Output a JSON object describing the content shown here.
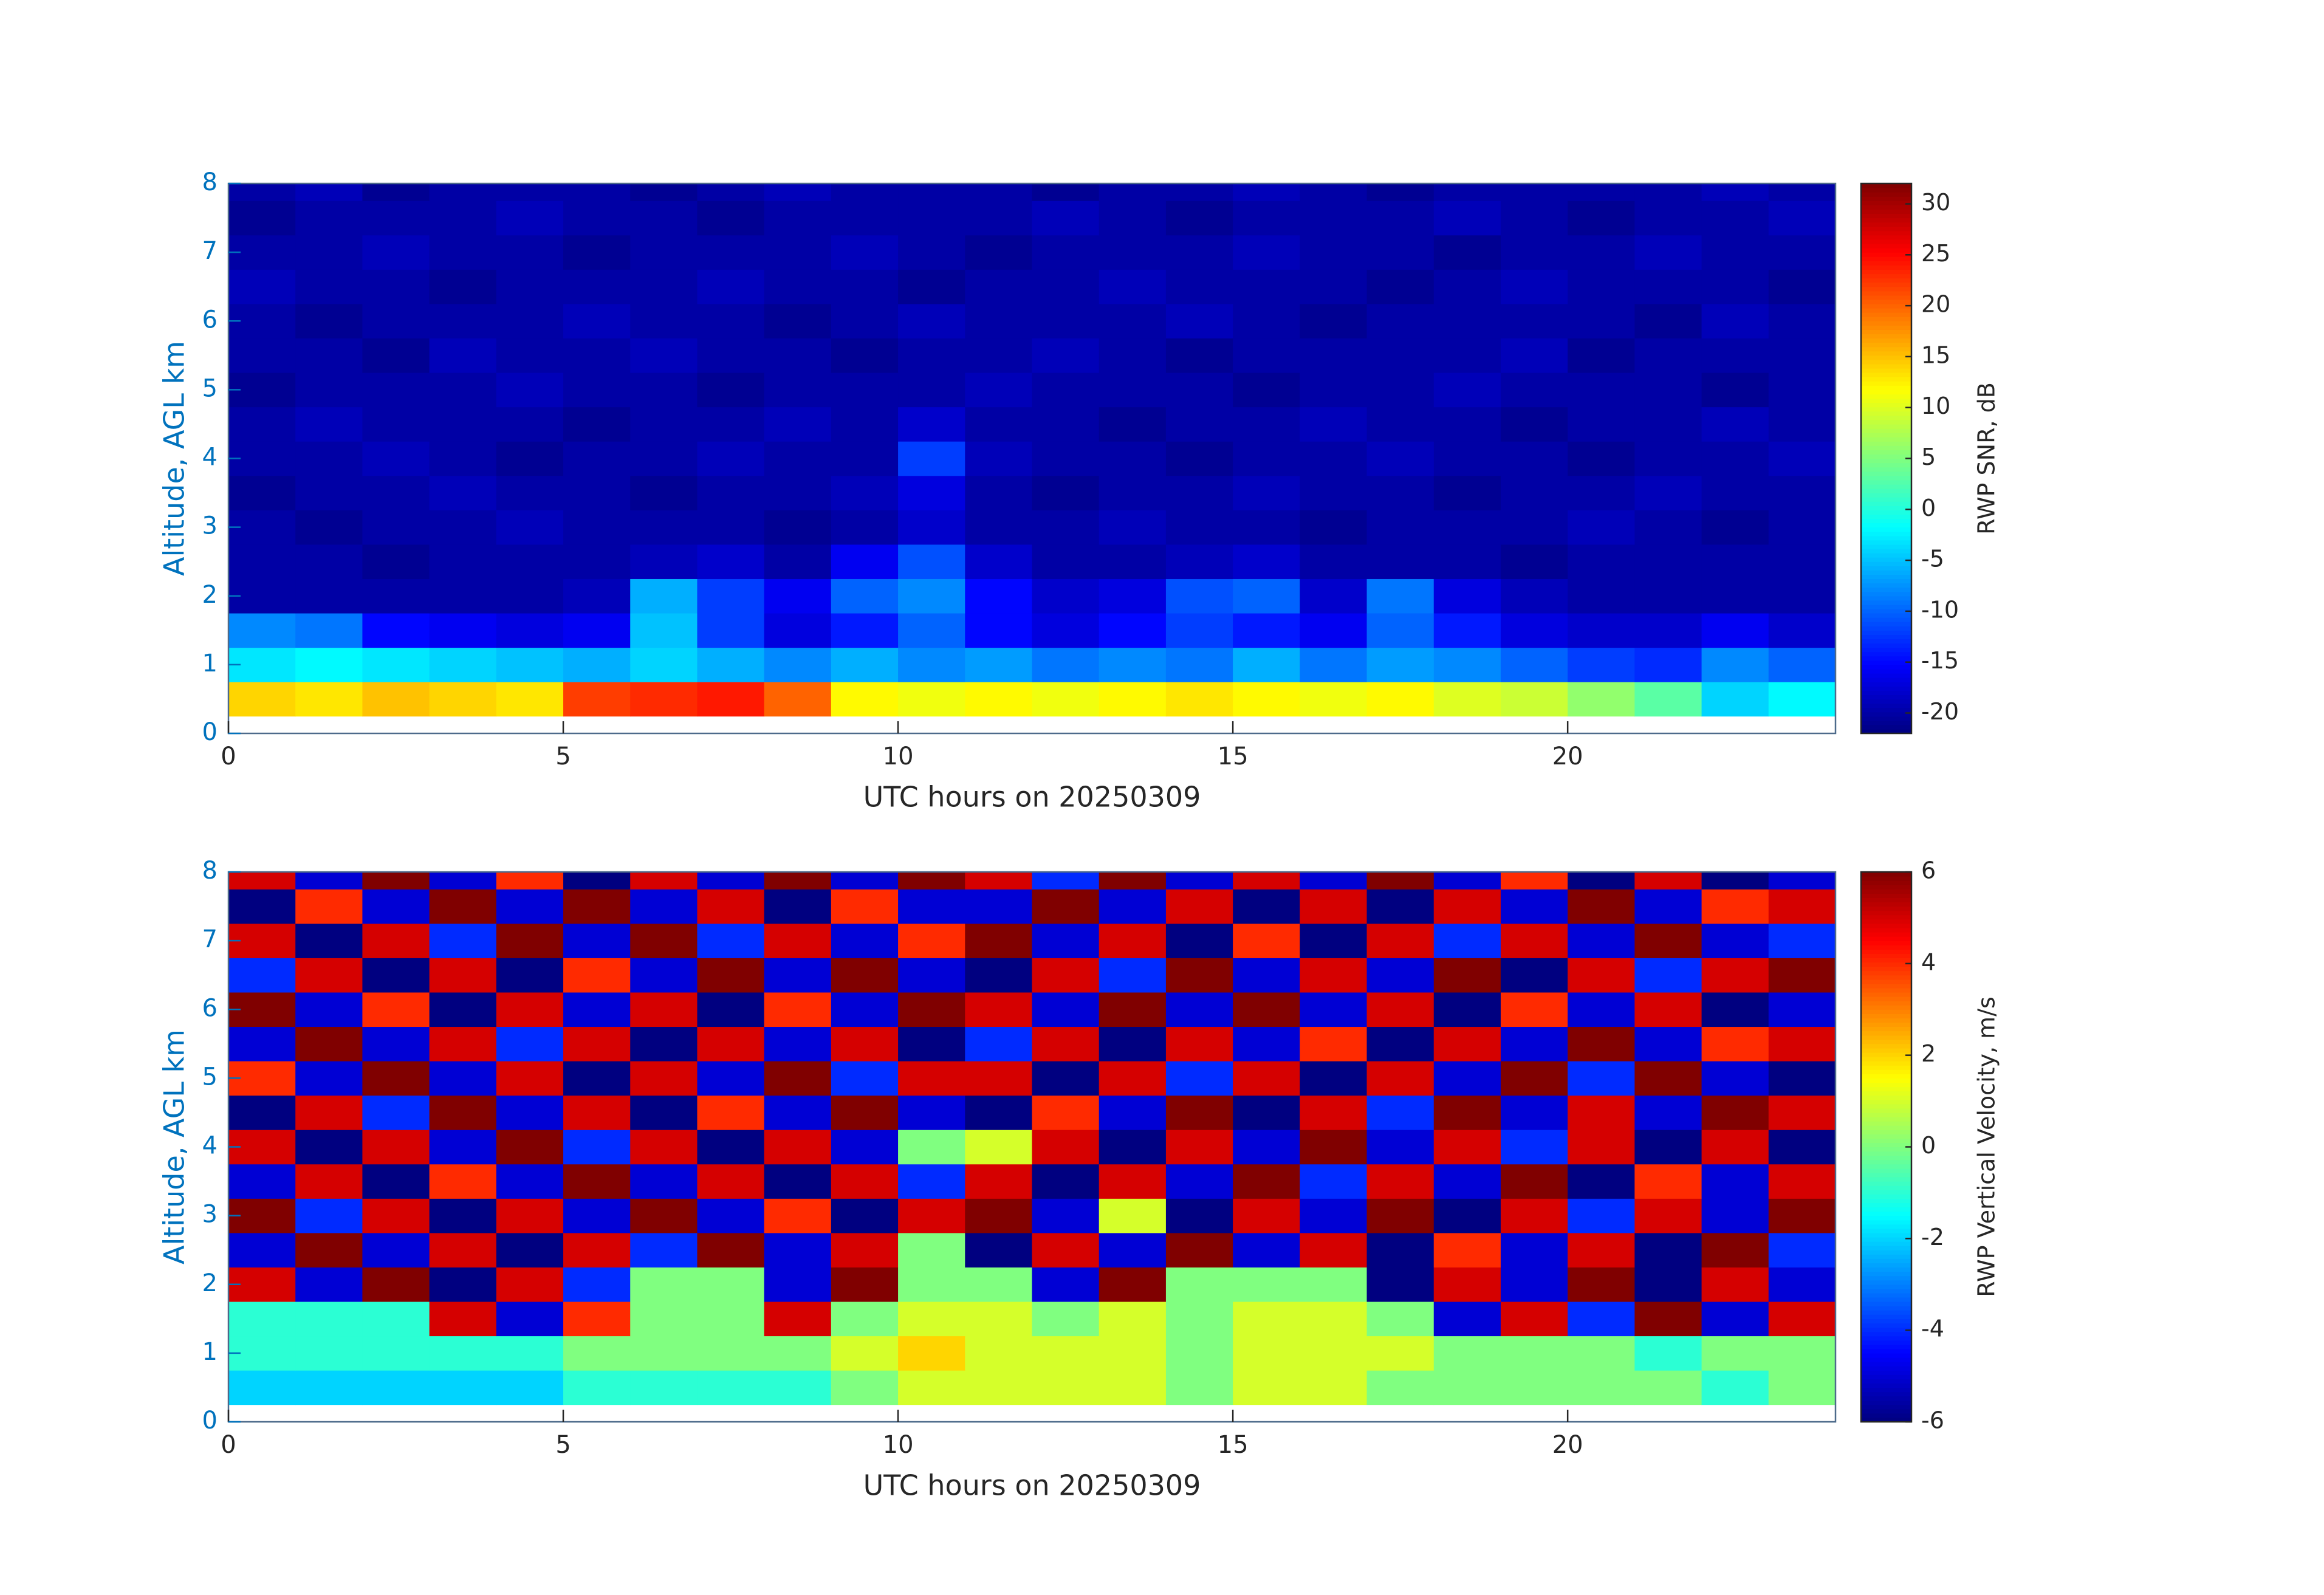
{
  "chart_data": [
    {
      "type": "heatmap",
      "xlabel": "UTC hours on 20250309",
      "ylabel": "Altitude, AGL km",
      "colorbar_label": "RWP SNR, dB",
      "xlim": [
        0,
        24
      ],
      "xticks": [
        0,
        5,
        10,
        15,
        20
      ],
      "ylim": [
        0,
        8
      ],
      "yticks": [
        0,
        1,
        2,
        3,
        4,
        5,
        6,
        7,
        8
      ],
      "clim": [
        -22,
        32
      ],
      "cticks": [
        -20,
        -15,
        -10,
        -5,
        0,
        5,
        10,
        15,
        20,
        25,
        30
      ],
      "colormap": "jet",
      "x": [
        0.5,
        1.5,
        2.5,
        3.5,
        4.5,
        5.5,
        6.5,
        7.5,
        8.5,
        9.5,
        10.5,
        11.5,
        12.5,
        13.5,
        14.5,
        15.5,
        16.5,
        17.5,
        18.5,
        19.5,
        20.5,
        21.5,
        22.5,
        23.5
      ],
      "y": [
        0.5,
        1.0,
        1.5,
        2.0,
        2.5,
        3.0,
        3.5,
        4.0,
        4.5,
        5.0,
        5.5,
        6.0,
        6.5,
        7.0,
        7.5,
        8.0
      ],
      "z": [
        [
          14,
          13,
          15,
          14,
          13,
          22,
          23,
          24,
          20,
          12,
          11,
          12,
          11,
          12,
          13,
          12,
          11,
          12,
          10,
          9,
          6,
          3,
          -4,
          -2
        ],
        [
          -3,
          -2,
          -3,
          -4,
          -5,
          -6,
          -4,
          -6,
          -8,
          -6,
          -8,
          -7,
          -9,
          -8,
          -9,
          -6,
          -9,
          -7,
          -8,
          -10,
          -12,
          -13,
          -8,
          -10
        ],
        [
          -8,
          -9,
          -15,
          -16,
          -17,
          -16,
          -5,
          -12,
          -17,
          -14,
          -10,
          -15,
          -17,
          -15,
          -12,
          -14,
          -16,
          -10,
          -14,
          -17,
          -18,
          -18,
          -16,
          -18
        ],
        [
          -20,
          -20,
          -20,
          -20,
          -20,
          -19,
          -6,
          -12,
          -16,
          -10,
          -8,
          -15,
          -18,
          -17,
          -11,
          -10,
          -18,
          -9,
          -17,
          -19,
          -20,
          -20,
          -20,
          -20
        ],
        [
          -20,
          -20,
          -21,
          -20,
          -20,
          -20,
          -19,
          -18,
          -20,
          -16,
          -11,
          -18,
          -20,
          -20,
          -19,
          -18,
          -20,
          -20,
          -20,
          -21,
          -20,
          -20,
          -20,
          -20
        ],
        [
          -20,
          -21,
          -20,
          -20,
          -19,
          -20,
          -20,
          -20,
          -21,
          -20,
          -18,
          -20,
          -20,
          -19,
          -20,
          -20,
          -21,
          -20,
          -20,
          -20,
          -19,
          -20,
          -21,
          -20
        ],
        [
          -21,
          -20,
          -20,
          -19,
          -20,
          -20,
          -21,
          -20,
          -20,
          -19,
          -17,
          -20,
          -21,
          -20,
          -20,
          -19,
          -20,
          -20,
          -21,
          -20,
          -20,
          -19,
          -20,
          -20
        ],
        [
          -20,
          -20,
          -19,
          -20,
          -21,
          -20,
          -20,
          -19,
          -20,
          -20,
          -12,
          -19,
          -20,
          -20,
          -21,
          -20,
          -20,
          -19,
          -20,
          -20,
          -21,
          -20,
          -20,
          -19
        ],
        [
          -20,
          -19,
          -20,
          -20,
          -20,
          -21,
          -20,
          -20,
          -19,
          -20,
          -18,
          -20,
          -20,
          -21,
          -20,
          -20,
          -19,
          -20,
          -20,
          -21,
          -20,
          -20,
          -19,
          -20
        ],
        [
          -21,
          -20,
          -20,
          -20,
          -19,
          -20,
          -20,
          -21,
          -20,
          -20,
          -20,
          -19,
          -20,
          -20,
          -20,
          -21,
          -20,
          -20,
          -19,
          -20,
          -20,
          -20,
          -21,
          -20
        ],
        [
          -20,
          -20,
          -21,
          -19,
          -20,
          -20,
          -19,
          -20,
          -20,
          -21,
          -20,
          -20,
          -19,
          -20,
          -21,
          -20,
          -20,
          -20,
          -20,
          -19,
          -21,
          -20,
          -20,
          -20
        ],
        [
          -20,
          -21,
          -20,
          -20,
          -20,
          -19,
          -20,
          -20,
          -21,
          -20,
          -19,
          -20,
          -20,
          -20,
          -19,
          -20,
          -21,
          -20,
          -20,
          -20,
          -20,
          -21,
          -19,
          -20
        ],
        [
          -19,
          -20,
          -20,
          -21,
          -20,
          -20,
          -20,
          -19,
          -20,
          -20,
          -21,
          -20,
          -20,
          -19,
          -20,
          -20,
          -20,
          -21,
          -20,
          -19,
          -20,
          -20,
          -20,
          -21
        ],
        [
          -20,
          -20,
          -19,
          -20,
          -20,
          -21,
          -20,
          -20,
          -20,
          -19,
          -20,
          -21,
          -20,
          -20,
          -20,
          -19,
          -20,
          -20,
          -21,
          -20,
          -20,
          -19,
          -20,
          -20
        ],
        [
          -21,
          -20,
          -20,
          -20,
          -19,
          -20,
          -20,
          -21,
          -20,
          -20,
          -20,
          -20,
          -19,
          -20,
          -21,
          -20,
          -20,
          -20,
          -19,
          -20,
          -21,
          -20,
          -20,
          -19
        ],
        [
          -20,
          -19,
          -21,
          -20,
          -20,
          -20,
          -21,
          -20,
          -19,
          -20,
          -20,
          -20,
          -21,
          -20,
          -20,
          -19,
          -20,
          -21,
          -20,
          -20,
          -20,
          -20,
          -19,
          -20
        ]
      ]
    },
    {
      "type": "heatmap",
      "xlabel": "UTC hours on 20250309",
      "ylabel": "Altitude, AGL km",
      "colorbar_label": "RWP Vertical Velocity, m/s",
      "xlim": [
        0,
        24
      ],
      "xticks": [
        0,
        5,
        10,
        15,
        20
      ],
      "ylim": [
        0,
        8
      ],
      "yticks": [
        0,
        1,
        2,
        3,
        4,
        5,
        6,
        7,
        8
      ],
      "clim": [
        -6,
        6
      ],
      "cticks": [
        -6,
        -4,
        -2,
        0,
        2,
        4,
        6
      ],
      "colormap": "jet",
      "x": [
        0.5,
        1.5,
        2.5,
        3.5,
        4.5,
        5.5,
        6.5,
        7.5,
        8.5,
        9.5,
        10.5,
        11.5,
        12.5,
        13.5,
        14.5,
        15.5,
        16.5,
        17.5,
        18.5,
        19.5,
        20.5,
        21.5,
        22.5,
        23.5
      ],
      "y": [
        0.5,
        1.0,
        1.5,
        2.0,
        2.5,
        3.0,
        3.5,
        4.0,
        4.5,
        5.0,
        5.5,
        6.0,
        6.5,
        7.0,
        7.5,
        8.0
      ],
      "z": [
        [
          -2,
          -2,
          -2,
          -2,
          -2,
          -1,
          -1,
          -1,
          -1,
          0,
          1,
          1,
          1,
          1,
          0,
          1,
          1,
          0,
          0,
          0,
          0,
          0,
          -1,
          0
        ],
        [
          -1,
          -1,
          -1,
          -1,
          -1,
          0,
          0,
          0,
          0,
          1,
          2,
          1,
          1,
          1,
          0,
          1,
          1,
          1,
          0,
          0,
          0,
          -1,
          0,
          0
        ],
        [
          -1,
          -1,
          -1,
          5,
          -5,
          4,
          0,
          0,
          5,
          0,
          1,
          1,
          0,
          1,
          0,
          1,
          1,
          0,
          -5,
          5,
          -4,
          6,
          -5,
          5
        ],
        [
          5,
          -5,
          6,
          -6,
          5,
          -4,
          0,
          0,
          -5,
          6,
          0,
          0,
          -5,
          6,
          0,
          0,
          0,
          -6,
          5,
          -5,
          6,
          -6,
          5,
          -5
        ],
        [
          -5,
          6,
          -5,
          5,
          -6,
          5,
          -4,
          6,
          -5,
          5,
          0,
          -6,
          5,
          -5,
          6,
          -5,
          5,
          -6,
          4,
          -5,
          5,
          -6,
          6,
          -4
        ],
        [
          6,
          -4,
          5,
          -6,
          5,
          -5,
          6,
          -5,
          4,
          -6,
          5,
          6,
          -5,
          1,
          -6,
          5,
          -5,
          6,
          -6,
          5,
          -4,
          5,
          -5,
          6
        ],
        [
          -5,
          5,
          -6,
          4,
          -5,
          6,
          -5,
          5,
          -6,
          5,
          -4,
          5,
          -6,
          5,
          -5,
          6,
          -4,
          5,
          -5,
          6,
          -6,
          4,
          -5,
          5
        ],
        [
          5,
          -6,
          5,
          -5,
          6,
          -4,
          5,
          -6,
          5,
          -5,
          0,
          1,
          5,
          -6,
          5,
          -5,
          6,
          -5,
          5,
          -4,
          5,
          -6,
          5,
          -6
        ],
        [
          -6,
          5,
          -4,
          6,
          -5,
          5,
          -6,
          4,
          -5,
          6,
          -5,
          -6,
          4,
          -5,
          6,
          -6,
          5,
          -4,
          6,
          -5,
          5,
          -5,
          6,
          5
        ],
        [
          4,
          -5,
          6,
          -5,
          5,
          -6,
          5,
          -5,
          6,
          -4,
          5,
          5,
          -6,
          5,
          -4,
          5,
          -6,
          5,
          -5,
          6,
          -4,
          6,
          -5,
          -6
        ],
        [
          -5,
          6,
          -5,
          5,
          -4,
          5,
          -6,
          5,
          -5,
          5,
          -6,
          -4,
          5,
          -6,
          5,
          -5,
          4,
          -6,
          5,
          -5,
          6,
          -5,
          4,
          5
        ],
        [
          6,
          -5,
          4,
          -6,
          5,
          -5,
          5,
          -6,
          4,
          -5,
          6,
          5,
          -5,
          6,
          -5,
          6,
          -5,
          5,
          -6,
          4,
          -5,
          5,
          -6,
          -5
        ],
        [
          -4,
          5,
          -6,
          5,
          -6,
          4,
          -5,
          6,
          -5,
          6,
          -5,
          -6,
          5,
          -4,
          6,
          -5,
          5,
          -5,
          6,
          -6,
          5,
          -4,
          5,
          6
        ],
        [
          5,
          -6,
          5,
          -4,
          6,
          -5,
          6,
          -4,
          5,
          -5,
          4,
          6,
          -5,
          5,
          -6,
          4,
          -6,
          5,
          -4,
          5,
          -5,
          6,
          -5,
          -4
        ],
        [
          -6,
          4,
          -5,
          6,
          -5,
          6,
          -5,
          5,
          -6,
          4,
          -5,
          -5,
          6,
          -5,
          5,
          -6,
          5,
          -6,
          5,
          -5,
          6,
          -5,
          4,
          5
        ],
        [
          5,
          -5,
          6,
          -5,
          4,
          -6,
          5,
          -5,
          6,
          -5,
          6,
          5,
          -4,
          6,
          -5,
          5,
          -5,
          6,
          -5,
          4,
          -6,
          5,
          -6,
          -5
        ]
      ]
    }
  ]
}
